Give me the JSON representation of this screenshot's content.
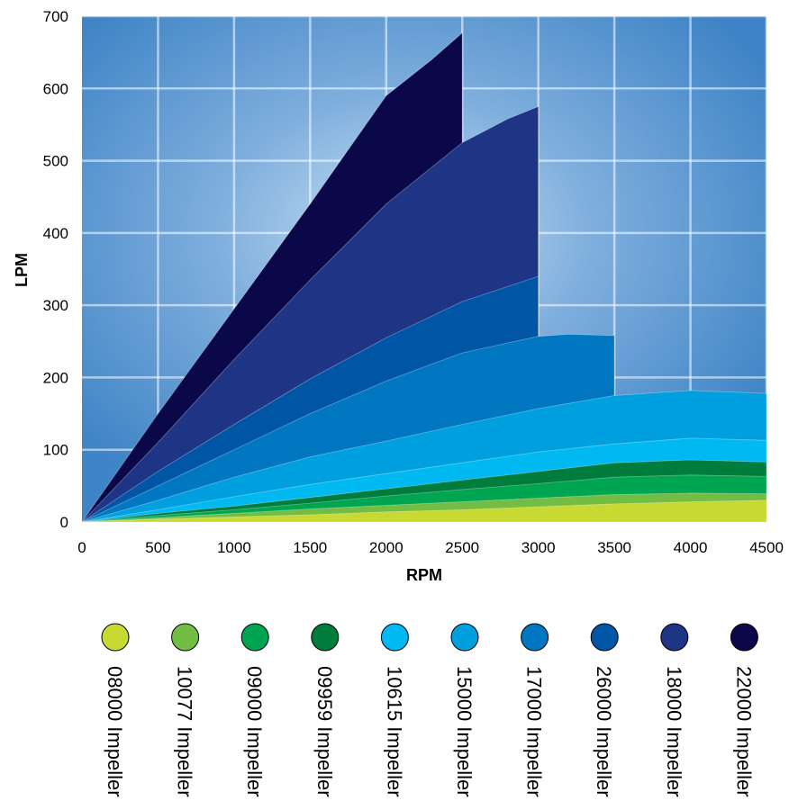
{
  "chart_data": {
    "type": "area",
    "xlabel": "RPM",
    "ylabel": "LPM",
    "xlim": [
      0,
      4500
    ],
    "ylim": [
      0,
      700
    ],
    "xticks": [
      0,
      500,
      1000,
      1500,
      2000,
      2500,
      3000,
      3500,
      4000,
      4500
    ],
    "yticks": [
      0,
      100,
      200,
      300,
      400,
      500,
      600,
      700
    ],
    "grid": true,
    "legend_position": "bottom",
    "series": [
      {
        "name": "08000 Impeller",
        "color": "#c8d932",
        "points": [
          [
            0,
            0
          ],
          [
            500,
            4
          ],
          [
            1000,
            7
          ],
          [
            1500,
            10
          ],
          [
            2000,
            14
          ],
          [
            2500,
            17
          ],
          [
            3000,
            21
          ],
          [
            3500,
            25
          ],
          [
            4000,
            28
          ],
          [
            4500,
            30
          ]
        ]
      },
      {
        "name": "10077 Impeller",
        "color": "#74bd44",
        "points": [
          [
            0,
            0
          ],
          [
            500,
            6
          ],
          [
            1000,
            12
          ],
          [
            1500,
            18
          ],
          [
            2000,
            23
          ],
          [
            2500,
            28
          ],
          [
            3000,
            33
          ],
          [
            3500,
            38
          ],
          [
            4000,
            40
          ],
          [
            4500,
            39
          ]
        ]
      },
      {
        "name": "09000 Impeller",
        "color": "#00a551",
        "points": [
          [
            0,
            0
          ],
          [
            500,
            9
          ],
          [
            1000,
            17
          ],
          [
            1500,
            26
          ],
          [
            2000,
            36
          ],
          [
            2500,
            45
          ],
          [
            3000,
            53
          ],
          [
            3500,
            62
          ],
          [
            4000,
            65
          ],
          [
            4500,
            63
          ]
        ]
      },
      {
        "name": "09959 Impeller",
        "color": "#007c3d",
        "points": [
          [
            0,
            0
          ],
          [
            500,
            12
          ],
          [
            1000,
            22
          ],
          [
            1500,
            34
          ],
          [
            2000,
            46
          ],
          [
            2500,
            58
          ],
          [
            3000,
            70
          ],
          [
            3500,
            82
          ],
          [
            4000,
            86
          ],
          [
            4500,
            83
          ]
        ]
      },
      {
        "name": "10615 Impeller",
        "color": "#00b9f1",
        "points": [
          [
            0,
            0
          ],
          [
            500,
            17
          ],
          [
            1000,
            35
          ],
          [
            1500,
            52
          ],
          [
            2000,
            67
          ],
          [
            2500,
            82
          ],
          [
            3000,
            97
          ],
          [
            3500,
            108
          ],
          [
            4000,
            116
          ],
          [
            4500,
            113
          ]
        ]
      },
      {
        "name": "15000 Impeller",
        "color": "#00a0e0",
        "points": [
          [
            0,
            0
          ],
          [
            500,
            30
          ],
          [
            1000,
            62
          ],
          [
            1500,
            90
          ],
          [
            2000,
            112
          ],
          [
            2500,
            135
          ],
          [
            3000,
            157
          ],
          [
            3500,
            175
          ],
          [
            4000,
            182
          ],
          [
            4500,
            178
          ]
        ]
      },
      {
        "name": "17000 Impeller",
        "color": "#0077c0",
        "points": [
          [
            0,
            0
          ],
          [
            500,
            50
          ],
          [
            1000,
            100
          ],
          [
            1500,
            150
          ],
          [
            2000,
            195
          ],
          [
            2500,
            234
          ],
          [
            3000,
            257
          ],
          [
            3200,
            260
          ],
          [
            3500,
            258
          ]
        ]
      },
      {
        "name": "26000 Impeller",
        "color": "#0055a5",
        "points": [
          [
            0,
            0
          ],
          [
            500,
            70
          ],
          [
            1000,
            135
          ],
          [
            1500,
            198
          ],
          [
            2000,
            255
          ],
          [
            2500,
            305
          ],
          [
            3000,
            340
          ]
        ]
      },
      {
        "name": "18000 Impeller",
        "color": "#1e3485",
        "points": [
          [
            0,
            0
          ],
          [
            500,
            110
          ],
          [
            1000,
            225
          ],
          [
            1500,
            335
          ],
          [
            2000,
            440
          ],
          [
            2500,
            525
          ],
          [
            2800,
            558
          ],
          [
            3000,
            575
          ]
        ]
      },
      {
        "name": "22000 Impeller",
        "color": "#0b0849",
        "points": [
          [
            0,
            0
          ],
          [
            500,
            150
          ],
          [
            1000,
            295
          ],
          [
            1500,
            440
          ],
          [
            2000,
            590
          ],
          [
            2300,
            640
          ],
          [
            2500,
            677
          ]
        ]
      }
    ]
  }
}
